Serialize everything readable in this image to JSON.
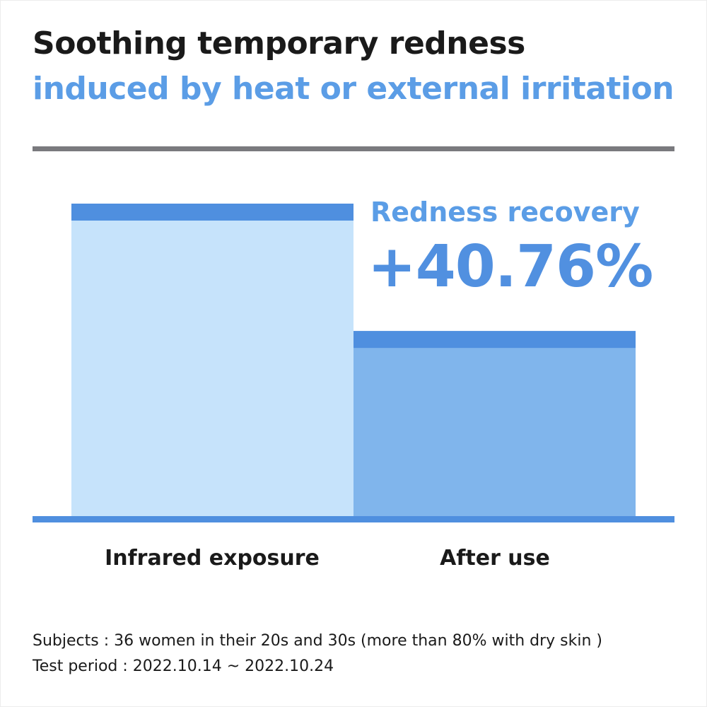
{
  "title": "Soothing temporary redness",
  "subtitle": "induced by heat or external irritation",
  "callout": {
    "label": "Redness recovery",
    "value": "+40.76%"
  },
  "chart_data": {
    "type": "bar",
    "categories": [
      "Infrared exposure",
      "After use"
    ],
    "values": [
      100,
      59.24
    ],
    "title": "",
    "xlabel": "",
    "ylabel": "",
    "ylim": [
      0,
      100
    ],
    "grid": false,
    "legend": "none",
    "colors": {
      "bar_fill": [
        "#c6e3fb",
        "#80b5ec"
      ],
      "bar_cap": "#4f8fdf",
      "baseline": "#4f8fdf"
    }
  },
  "footnotes": [
    "Subjects : 36 women in their 20s and 30s (more than 80% with dry skin )",
    "Test period : 2022.10.14 ~ 2022.10.24"
  ]
}
